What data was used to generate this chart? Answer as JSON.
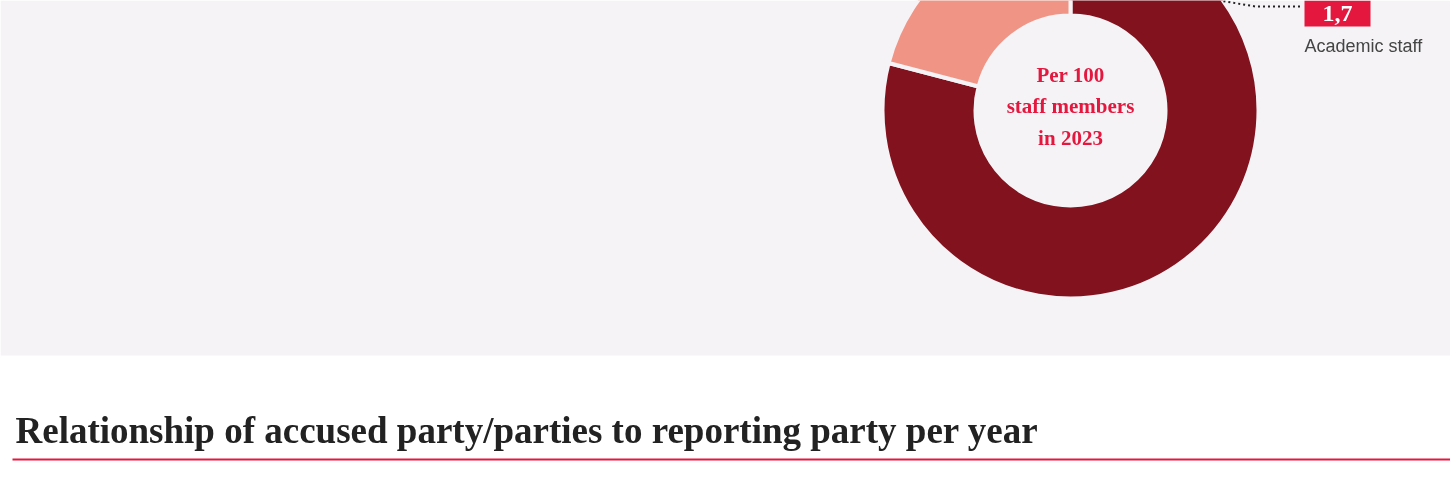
{
  "chart_data": {
    "type": "donut",
    "categories": [
      "Academic staff",
      null
    ],
    "values": [
      1.7,
      0.45
    ],
    "colors": [
      "#83121f",
      "#f09586"
    ],
    "value_labels": [
      "1,7",
      null
    ],
    "annotations": [
      "Per 100\nstaff members\nin 2023",
      "Relationship of accused party/parties to reporting party per year"
    ]
  }
}
